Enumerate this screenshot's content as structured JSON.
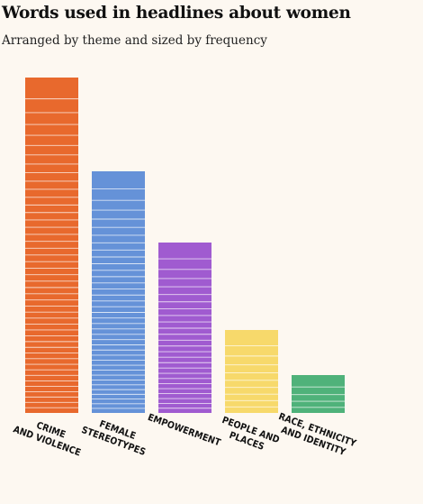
{
  "title": "Words used in headlines about women",
  "subtitle": "Arranged by theme and sized by frequency",
  "chart_data": {
    "type": "bar",
    "categories": [
      [
        "CRIME",
        "AND VIOLENCE"
      ],
      [
        "FEMALE",
        "STEREOTYPES"
      ],
      [
        "EMPOWERMENT"
      ],
      [
        "PEOPLE AND",
        "PLACES"
      ],
      [
        "RACE, ETHNICITY",
        "AND IDENTITY"
      ]
    ],
    "values": [
      372,
      268,
      189,
      92,
      42
    ],
    "word_counts": [
      46,
      38,
      26,
      10,
      5
    ],
    "colors": [
      "#e8692d",
      "#6592d8",
      "#a05bd0",
      "#f7d96b",
      "#4fb27a"
    ],
    "grid": false,
    "ylim": [
      0,
      380
    ]
  }
}
